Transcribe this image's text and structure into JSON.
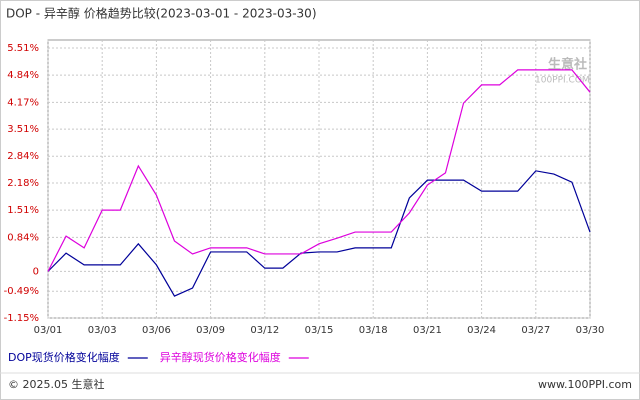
{
  "chart_data": {
    "type": "line",
    "title": "DOP - 异辛醇 价格趋势比较(2023-03-01 - 2023-03-30)",
    "categories": [
      "03/01",
      null,
      null,
      "03/03",
      null,
      null,
      "03/06",
      null,
      null,
      "03/09",
      null,
      null,
      "03/12",
      null,
      null,
      "03/15",
      null,
      null,
      "03/18",
      null,
      null,
      "03/21",
      null,
      null,
      "03/24",
      null,
      null,
      "03/27",
      null,
      null,
      "03/30"
    ],
    "series": [
      {
        "name": "DOP现货价格变化幅度",
        "color": "#000099",
        "values": [
          0,
          0.45,
          0.16,
          0.16,
          0.16,
          0.68,
          0.16,
          -0.61,
          -0.41,
          0.48,
          0.48,
          0.48,
          0.08,
          0.08,
          0.45,
          0.48,
          0.48,
          0.58,
          0.58,
          0.58,
          1.81,
          2.25,
          2.25,
          2.25,
          1.98,
          1.98,
          1.98,
          2.48,
          2.4,
          2.2,
          0.97
        ]
      },
      {
        "name": "异辛醇现货价格变化幅度",
        "color": "#dd00dd",
        "values": [
          0,
          0.87,
          0.58,
          1.51,
          1.51,
          2.6,
          1.88,
          0.75,
          0.43,
          0.58,
          0.58,
          0.58,
          0.43,
          0.43,
          0.43,
          0.68,
          0.82,
          0.97,
          0.97,
          0.97,
          1.44,
          2.13,
          2.43,
          4.15,
          4.6,
          4.6,
          4.97,
          4.97,
          4.97,
          4.97,
          4.42
        ]
      }
    ],
    "ylim": [
      -1.15,
      5.51
    ],
    "yticks": [
      {
        "value": 5.51,
        "label": "5.51%"
      },
      {
        "value": 4.84,
        "label": "4.84%"
      },
      {
        "value": 4.17,
        "label": "4.17%"
      },
      {
        "value": 3.51,
        "label": "3.51%"
      },
      {
        "value": 2.84,
        "label": "2.84%"
      },
      {
        "value": 2.18,
        "label": "2.18%"
      },
      {
        "value": 1.51,
        "label": "1.51%"
      },
      {
        "value": 0.84,
        "label": "0.84%"
      },
      0,
      {
        "value": -0.49,
        "label": "-0.49%"
      },
      {
        "value": -1.15,
        "label": "-1.15%"
      }
    ],
    "grid": true,
    "watermark": [
      "生意社",
      "100PPI.COM"
    ],
    "footer": {
      "left": "© 2025.05 生意社",
      "right": "www.100PPI.com"
    }
  }
}
